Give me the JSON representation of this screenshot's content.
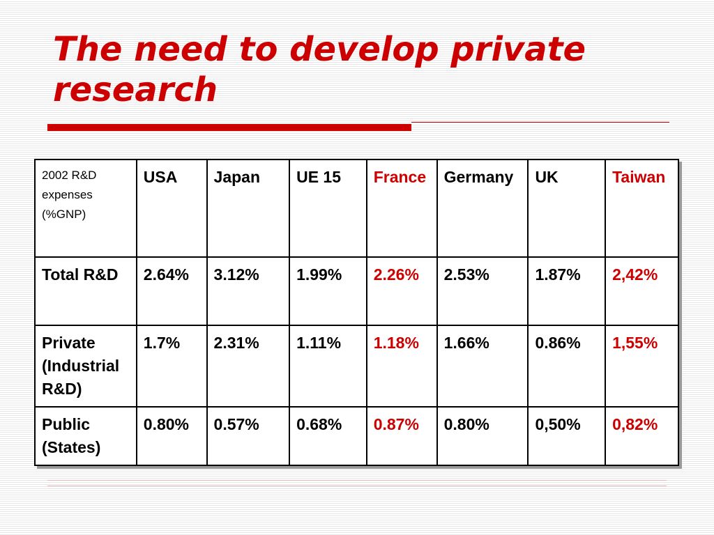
{
  "slide": {
    "title": "The need to develop private research"
  },
  "table": {
    "corner": "2002 R&D expenses (%GNP)",
    "columns": [
      "USA",
      "Japan",
      "UE 15",
      "France",
      "Germany",
      "UK",
      "Taiwan"
    ],
    "highlight_color": "#cc0000",
    "highlight_columns": [
      "France",
      "Taiwan"
    ],
    "rows": [
      {
        "label": "Total R&D",
        "values": [
          "2.64%",
          "3.12%",
          "1.99%",
          "2.26%",
          "2.53%",
          "1.87%",
          "2,42%"
        ]
      },
      {
        "label": "Private (Industrial R&D)",
        "values": [
          "1.7%",
          "2.31%",
          "1.11%",
          "1.18%",
          "1.66%",
          "0.86%",
          "1,55%"
        ]
      },
      {
        "label": "Public (States)",
        "values": [
          "0.80%",
          "0.57%",
          "0.68%",
          "0.87%",
          "0.80%",
          "0,50%",
          "0,82%"
        ]
      }
    ]
  }
}
